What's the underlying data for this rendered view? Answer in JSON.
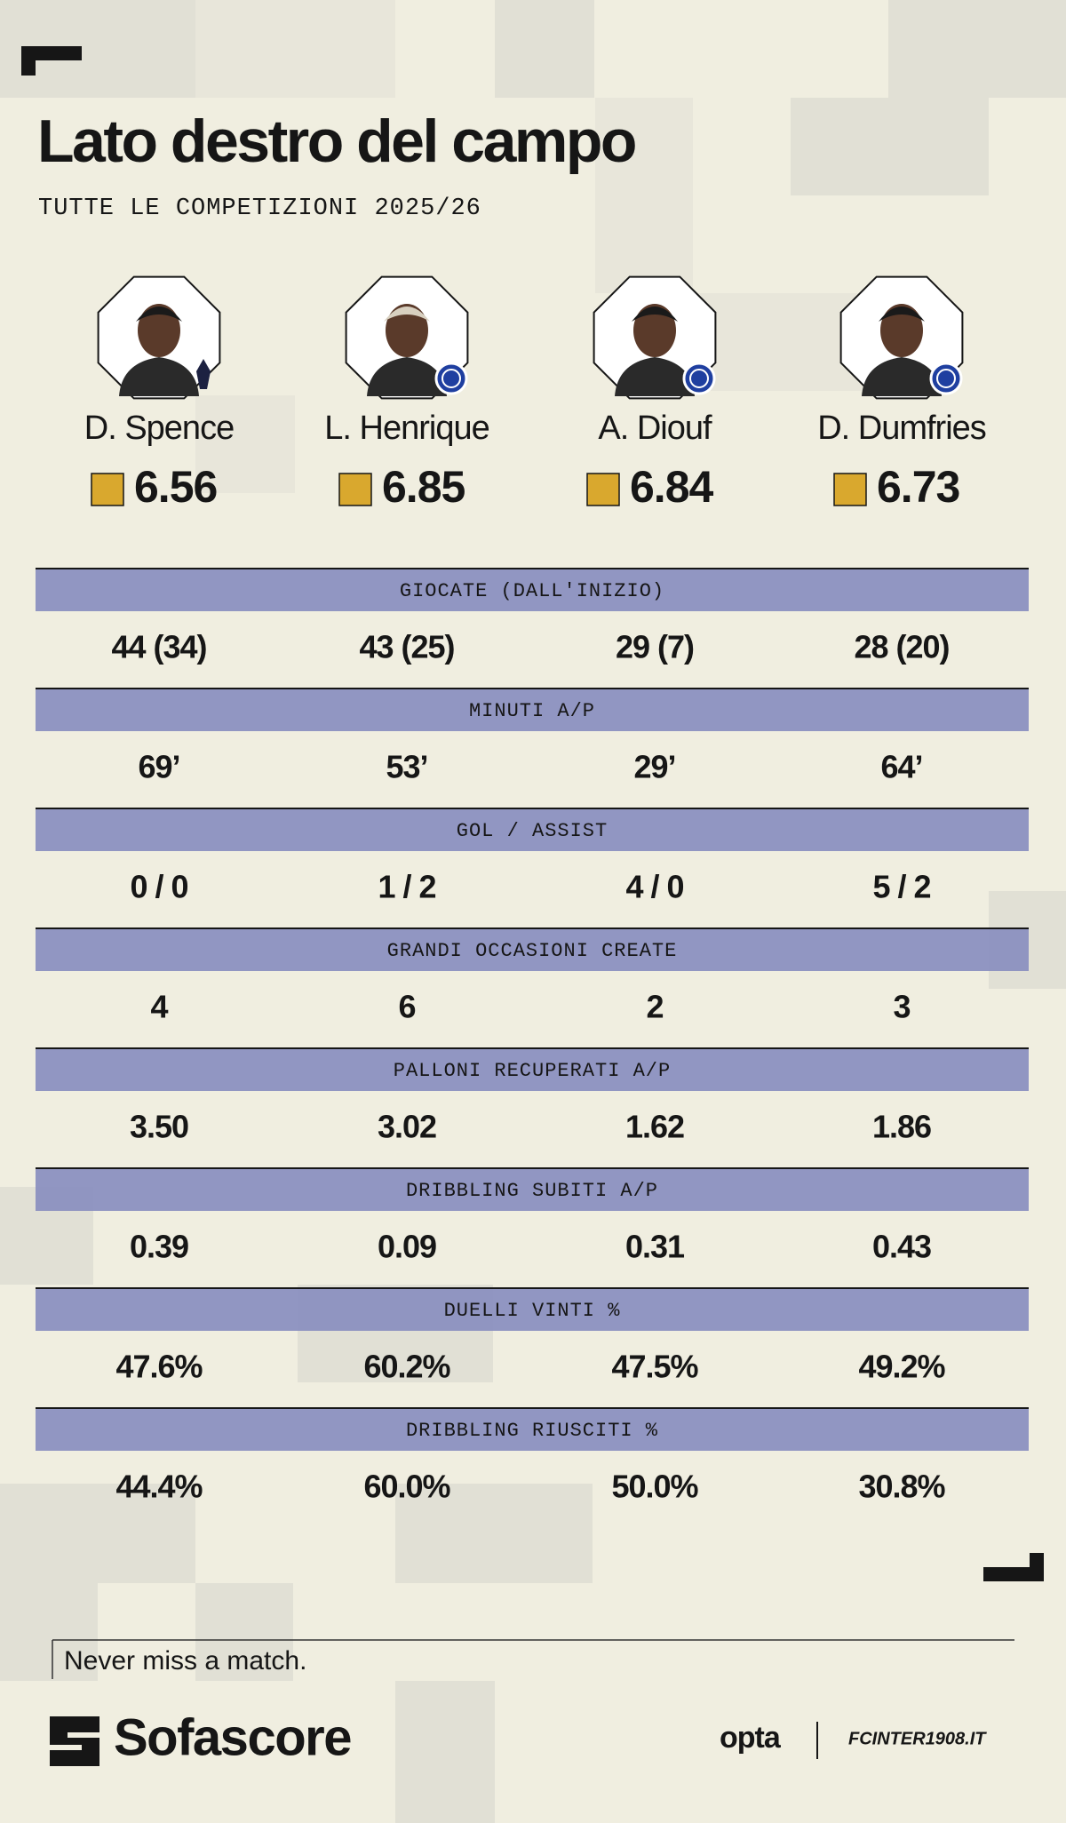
{
  "header": {
    "title": "Lato destro del campo",
    "subtitle": "TUTTE LE COMPETIZIONI 2025/26"
  },
  "players": [
    {
      "name": "D. Spence",
      "rating": "6.56"
    },
    {
      "name": "L. Henrique",
      "rating": "6.85"
    },
    {
      "name": "A. Diouf",
      "rating": "6.84"
    },
    {
      "name": "D. Dumfries",
      "rating": "6.73"
    }
  ],
  "stats": [
    {
      "label": "GIOCATE (DALL'INIZIO)",
      "values": [
        "44 (34)",
        "43 (25)",
        "29 (7)",
        "28 (20)"
      ]
    },
    {
      "label": "MINUTI A/P",
      "values": [
        "69’",
        "53’",
        "29’",
        "64’"
      ]
    },
    {
      "label": "GOL / ASSIST",
      "values": [
        "0 / 0",
        "1 / 2",
        "4 / 0",
        "5 / 2"
      ]
    },
    {
      "label": "GRANDI OCCASIONI CREATE",
      "values": [
        "4",
        "6",
        "2",
        "3"
      ]
    },
    {
      "label": "PALLONI RECUPERATI A/P",
      "values": [
        "3.50",
        "3.02",
        "1.62",
        "1.86"
      ]
    },
    {
      "label": "DRIBBLING SUBITI A/P",
      "values": [
        "0.39",
        "0.09",
        "0.31",
        "0.43"
      ]
    },
    {
      "label": "DUELLI VINTI %",
      "values": [
        "47.6%",
        "60.2%",
        "47.5%",
        "49.2%"
      ]
    },
    {
      "label": "DRIBBLING RIUSCITI %",
      "values": [
        "44.4%",
        "60.0%",
        "50.0%",
        "30.8%"
      ]
    }
  ],
  "footer": {
    "tagline": "Never miss a match.",
    "brand": "Sofascore",
    "partners": [
      "opta",
      "FCINTER1908.IT"
    ]
  }
}
